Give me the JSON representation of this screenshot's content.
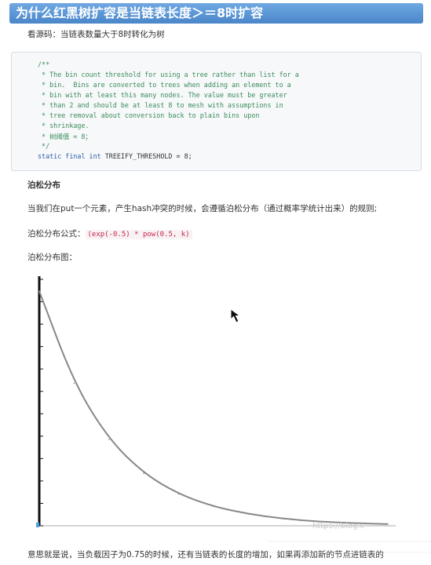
{
  "heading": "为什么红黑树扩容是当链表长度＞＝8时扩容",
  "intro": "看源码：当链表数量大于8时转化为树",
  "code_lines": [
    "/**",
    " * The bin count threshold for using a tree rather than list for a",
    " * bin.  Bins are converted to trees when adding an element to a",
    " * bin with at least this many nodes. The value must be greater",
    " * than 2 and should be at least 8 to mesh with assumptions in",
    " * tree removal about conversion back to plain bins upon",
    " * shrinkage.",
    " * 树阈值 = 8；",
    " */"
  ],
  "code_decl": {
    "keywords": "static final int",
    "rest": " TREEIFY_THRESHOLD = 8;"
  },
  "section_title": "泊松分布",
  "paragraph": "当我们在put一个元素，产生hash冲突的时候，会遵循泊松分布（通过概率学统计出来）的规则;",
  "formula_label": "泊松分布公式：",
  "formula_code": "(exp(-0.5) * pow(0.5, k)",
  "chart_label": "泊松分布图：",
  "chart_data": {
    "type": "line",
    "title": "",
    "xlabel": "",
    "ylabel": "",
    "series": [
      {
        "x": [
          0,
          1,
          2,
          3,
          4,
          5,
          6,
          7,
          8,
          9,
          10
        ],
        "values": [
          1.0,
          0.607,
          0.368,
          0.223,
          0.135,
          0.082,
          0.05,
          0.03,
          0.018,
          0.011,
          0.007
        ]
      }
    ],
    "xlim": [
      0,
      10
    ],
    "ylim": [
      0,
      1.05
    ],
    "grid": false,
    "line_color": "#888888",
    "axis_color": "#111111"
  },
  "watermark": "https://blog.c",
  "footer": "意思就是说，当负载因子为0.75的时候，还有当链表的长度的增加，如果再添加新的节点进链表的"
}
